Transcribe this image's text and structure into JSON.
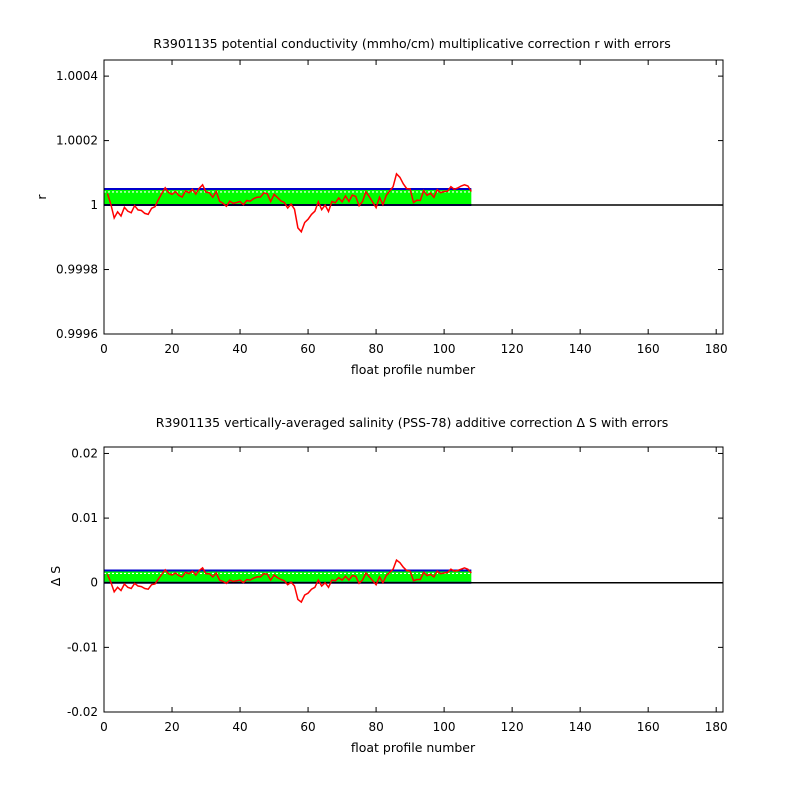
{
  "figure": {
    "background": "#ffffff"
  },
  "chart_data": [
    {
      "type": "line",
      "title": "R3901135 potential conductivity (mmho/cm) multiplicative correction r with errors",
      "xlabel": "float profile number",
      "ylabel": "r",
      "xlim": [
        0,
        182
      ],
      "ylim": [
        0.9996,
        1.00045
      ],
      "xticks": [
        0,
        20,
        40,
        60,
        80,
        100,
        120,
        140,
        160,
        180
      ],
      "xtick_labels": [
        "0",
        "20",
        "40",
        "60",
        "80",
        "100",
        "120",
        "140",
        "160",
        "180"
      ],
      "yticks": [
        0.9996,
        0.9998,
        1,
        1.0002,
        1.0004
      ],
      "ytick_labels": [
        "0.9996",
        "0.9998",
        "1",
        "1.0002",
        "1.0004"
      ],
      "grid": false,
      "reference_line": {
        "y": 1,
        "color": "#000000"
      },
      "error_band": {
        "x_start": 0,
        "x_end": 108,
        "lower": 1.0,
        "upper": 1.00005,
        "fill_color": "#00ff00",
        "edge_color": "#0000cc",
        "dash_color": "#ffffff"
      },
      "series": [
        {
          "color": "#ff0000",
          "x": [
            1,
            2,
            3,
            4,
            5,
            6,
            7,
            8,
            9,
            10,
            11,
            12,
            13,
            14,
            15,
            16,
            17,
            18,
            19,
            20,
            21,
            22,
            23,
            24,
            25,
            26,
            27,
            28,
            29,
            30,
            31,
            32,
            33,
            34,
            35,
            36,
            37,
            38,
            39,
            40,
            41,
            42,
            43,
            44,
            45,
            46,
            47,
            48,
            49,
            50,
            51,
            52,
            53,
            54,
            55,
            56,
            57,
            58,
            59,
            60,
            61,
            62,
            63,
            64,
            65,
            66,
            67,
            68,
            69,
            70,
            71,
            72,
            73,
            74,
            75,
            76,
            77,
            78,
            79,
            80,
            81,
            82,
            83,
            84,
            85,
            86,
            87,
            88,
            89,
            90,
            91,
            92,
            93,
            94,
            95,
            96,
            97,
            98,
            99,
            100,
            101,
            102,
            103,
            104,
            105,
            106,
            107,
            108
          ],
          "y": [
            1.000036,
            1.000003,
            0.99996,
            0.999979,
            0.999966,
            0.999993,
            0.999981,
            0.999976,
            0.999998,
            0.999985,
            0.999983,
            0.999974,
            0.999971,
            0.99999,
            0.999995,
            1.000017,
            1.000036,
            1.000054,
            1.000039,
            1.000033,
            1.000042,
            1.00003,
            1.000025,
            1.000044,
            1.000038,
            1.000049,
            1.000034,
            1.000052,
            1.000063,
            1.00004,
            1.000038,
            1.000024,
            1.000042,
            1.000012,
            1.000005,
            0.999996,
            1.000012,
            1.000005,
            1.000008,
            1.000011,
            1.000001,
            1.000014,
            1.000012,
            1.00002,
            1.000024,
            1.000025,
            1.000038,
            1.000035,
            1.000011,
            1.000033,
            1.000023,
            1.000013,
            1.000008,
            0.999991,
            1.000003,
            0.999987,
            0.999929,
            0.999917,
            0.999946,
            0.999956,
            0.999971,
            0.999981,
            1.00001,
            0.999986,
            1.0,
            0.99998,
            1.000011,
            1.000007,
            1.000022,
            1.00001,
            1.000028,
            1.000011,
            1.000031,
            1.000027,
            0.999998,
            1.000011,
            1.000041,
            1.000026,
            1.000009,
            0.999992,
            1.000024,
            1.000001,
            1.00003,
            1.000044,
            1.000057,
            1.000097,
            1.000086,
            1.000066,
            1.000051,
            1.00005,
            1.000008,
            1.000015,
            1.000014,
            1.000045,
            1.00003,
            1.000037,
            1.000024,
            1.000048,
            1.000038,
            1.000042,
            1.000043,
            1.000057,
            1.000049,
            1.000053,
            1.000059,
            1.000063,
            1.000059,
            1.000042
          ]
        }
      ]
    },
    {
      "type": "line",
      "title": "R3901135 vertically-averaged salinity (PSS-78) additive correction Δ S with errors",
      "xlabel": "float profile number",
      "ylabel": "Δ S",
      "xlim": [
        0,
        182
      ],
      "ylim": [
        -0.02,
        0.021
      ],
      "xticks": [
        0,
        20,
        40,
        60,
        80,
        100,
        120,
        140,
        160,
        180
      ],
      "xtick_labels": [
        "0",
        "20",
        "40",
        "60",
        "80",
        "100",
        "120",
        "140",
        "160",
        "180"
      ],
      "yticks": [
        -0.02,
        -0.01,
        0,
        0.01,
        0.02
      ],
      "ytick_labels": [
        "-0.02",
        "-0.01",
        "0",
        "0.01",
        "0.02"
      ],
      "grid": false,
      "reference_line": {
        "y": 0,
        "color": "#000000"
      },
      "error_band": {
        "x_start": 0,
        "x_end": 108,
        "lower": 0.0,
        "upper": 0.0019,
        "fill_color": "#00ff00",
        "edge_color": "#0000cc",
        "dash_color": "#ffffff"
      },
      "series": [
        {
          "color": "#ff0000",
          "x": [
            1,
            2,
            3,
            4,
            5,
            6,
            7,
            8,
            9,
            10,
            11,
            12,
            13,
            14,
            15,
            16,
            17,
            18,
            19,
            20,
            21,
            22,
            23,
            24,
            25,
            26,
            27,
            28,
            29,
            30,
            31,
            32,
            33,
            34,
            35,
            36,
            37,
            38,
            39,
            40,
            41,
            42,
            43,
            44,
            45,
            46,
            47,
            48,
            49,
            50,
            51,
            52,
            53,
            54,
            55,
            56,
            57,
            58,
            59,
            60,
            61,
            62,
            63,
            64,
            65,
            66,
            67,
            68,
            69,
            70,
            71,
            72,
            73,
            74,
            75,
            76,
            77,
            78,
            79,
            80,
            81,
            82,
            83,
            84,
            85,
            86,
            87,
            88,
            89,
            90,
            91,
            92,
            93,
            94,
            95,
            96,
            97,
            98,
            99,
            100,
            101,
            102,
            103,
            104,
            105,
            106,
            107,
            108
          ],
          "y": [
            0.0013,
            0.0001,
            -0.0014,
            -0.0007,
            -0.0012,
            -0.0002,
            -0.0007,
            -0.0009,
            -0.0001,
            -0.0005,
            -0.0006,
            -0.0009,
            -0.001,
            -0.0003,
            -0.0002,
            0.0006,
            0.0013,
            0.002,
            0.0014,
            0.0012,
            0.0015,
            0.0011,
            0.0009,
            0.0016,
            0.0014,
            0.0018,
            0.0012,
            0.0019,
            0.0023,
            0.0014,
            0.0014,
            0.0009,
            0.0015,
            0.0004,
            0.0002,
            -0.0001,
            0.0004,
            0.0002,
            0.0003,
            0.0004,
            0.0,
            0.0005,
            0.0004,
            0.0007,
            0.0009,
            0.0009,
            0.0014,
            0.0013,
            0.0004,
            0.0012,
            0.0008,
            0.0005,
            0.0003,
            -0.0003,
            0.0001,
            -0.0005,
            -0.0026,
            -0.003,
            -0.0019,
            -0.0016,
            -0.001,
            -0.0007,
            0.0004,
            -0.0005,
            0.0,
            -0.0007,
            0.0004,
            0.0003,
            0.0008,
            0.0004,
            0.001,
            0.0004,
            0.0011,
            0.001,
            -0.0001,
            0.0004,
            0.0015,
            0.0009,
            0.0003,
            -0.0003,
            0.0009,
            0.0,
            0.0011,
            0.0016,
            0.0021,
            0.0035,
            0.0031,
            0.0024,
            0.0019,
            0.0018,
            0.0003,
            0.0005,
            0.0005,
            0.0016,
            0.0011,
            0.0013,
            0.0009,
            0.0018,
            0.0014,
            0.0015,
            0.0016,
            0.0021,
            0.0018,
            0.0019,
            0.0021,
            0.0023,
            0.0021,
            0.0015
          ]
        }
      ]
    }
  ]
}
